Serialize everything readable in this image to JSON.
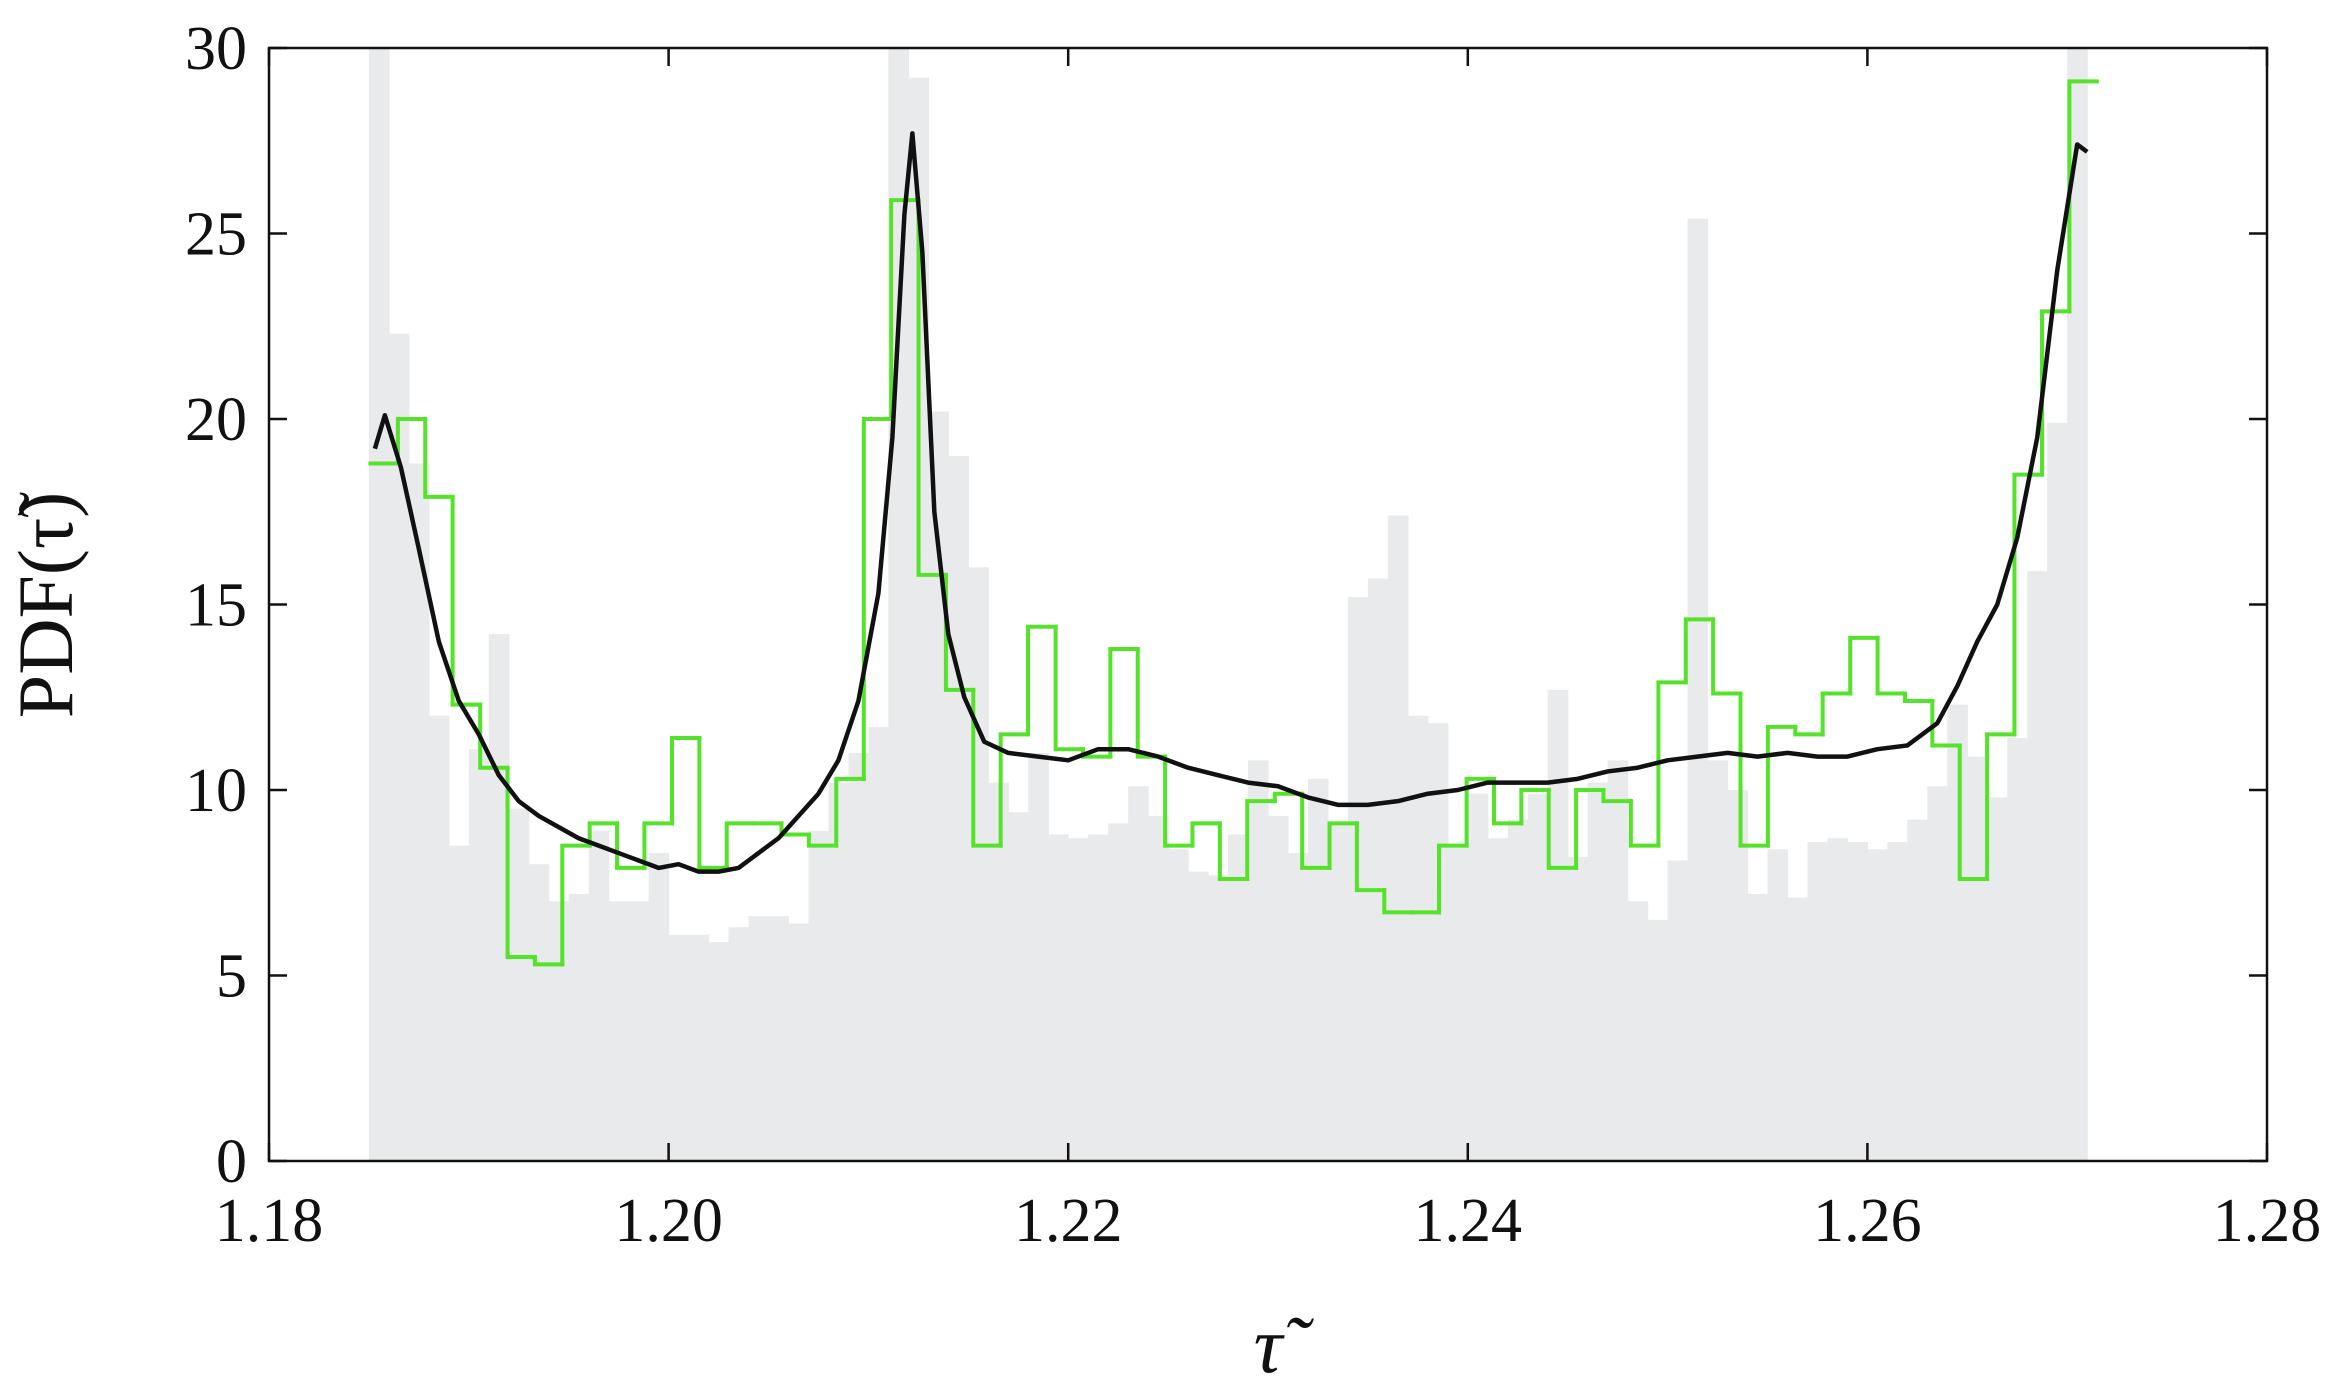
{
  "chart_data": {
    "type": "histogram",
    "xlabel": "τ̃",
    "ylabel": "PDF(τ̃)",
    "xlim": [
      1.18,
      1.28
    ],
    "xticks": [
      1.18,
      {
        "value": 1.2,
        "label": "1.20"
      },
      1.22,
      1.24,
      1.26,
      1.28
    ],
    "ylim": [
      0,
      30
    ],
    "yticks": [
      0,
      5,
      10,
      15,
      20,
      25,
      30
    ],
    "histograms": [
      {
        "style": "filled",
        "color": "#e8eaeb",
        "bins": [
          1.185,
          1.186,
          1.187,
          1.188,
          1.189,
          1.19,
          1.191,
          1.192,
          1.193,
          1.194,
          1.195,
          1.196,
          1.197,
          1.198,
          1.199,
          1.2,
          1.201,
          1.202,
          1.203,
          1.204,
          1.205,
          1.206,
          1.207,
          1.208,
          1.209,
          1.21,
          1.211,
          1.212,
          1.213,
          1.214,
          1.215,
          1.216,
          1.217,
          1.218,
          1.219,
          1.22,
          1.221,
          1.222,
          1.223,
          1.224,
          1.225,
          1.226,
          1.227,
          1.228,
          1.229,
          1.23,
          1.231,
          1.232,
          1.233,
          1.234,
          1.235,
          1.236,
          1.237,
          1.238,
          1.239,
          1.24,
          1.241,
          1.242,
          1.243,
          1.244,
          1.245,
          1.246,
          1.247,
          1.248,
          1.249,
          1.25,
          1.251,
          1.252,
          1.253,
          1.254,
          1.255,
          1.256,
          1.257,
          1.258,
          1.259,
          1.26,
          1.261,
          1.262,
          1.263,
          1.264,
          1.265,
          1.266,
          1.267,
          1.268,
          1.269,
          1.27,
          1.271
        ],
        "counts": [
          30,
          22.3,
          18.8,
          12,
          8.5,
          11.1,
          14.2,
          9.5,
          8,
          7,
          7.2,
          8.9,
          7,
          7,
          8.3,
          6.1,
          6.1,
          5.9,
          6.3,
          6.6,
          6.6,
          6.4,
          8.9,
          10.2,
          11,
          11.7,
          30,
          29.2,
          20.2,
          19,
          16,
          10.2,
          9.4,
          11,
          8.8,
          8.7,
          8.8,
          9.1,
          10.1,
          9.3,
          8.4,
          7.8,
          7.7,
          8.8,
          10.8,
          9.3,
          8.3,
          10.3,
          9.1,
          15.2,
          15.7,
          17.4,
          12,
          11.8,
          8.5,
          9.9,
          8.7,
          9.2,
          9.9,
          12.7,
          8.2,
          10.2,
          10.8,
          7,
          6.5,
          8.1,
          25.4,
          10.8,
          10,
          7.2,
          8.4,
          7.1,
          8.6,
          8.7,
          8.6,
          8.4,
          8.6,
          9.2,
          10.1,
          12.3,
          10.9,
          9.8,
          11.4,
          15.9,
          19.9,
          30
        ]
      },
      {
        "style": "step",
        "color": "#55e22b",
        "bins": [
          1.18508,
          1.18645,
          1.18782,
          1.18919,
          1.19057,
          1.19194,
          1.19331,
          1.19468,
          1.19605,
          1.19742,
          1.19879,
          1.20017,
          1.20154,
          1.20291,
          1.20428,
          1.20565,
          1.20702,
          1.20839,
          1.20977,
          1.21114,
          1.21251,
          1.21388,
          1.21525,
          1.21662,
          1.21799,
          1.21937,
          1.22074,
          1.22211,
          1.22348,
          1.22485,
          1.22622,
          1.22759,
          1.22896,
          1.23034,
          1.23171,
          1.23308,
          1.23445,
          1.23582,
          1.23719,
          1.23856,
          1.23994,
          1.24131,
          1.24268,
          1.24405,
          1.24542,
          1.24679,
          1.24816,
          1.24954,
          1.25091,
          1.25228,
          1.25365,
          1.25502,
          1.25639,
          1.25776,
          1.25914,
          1.26051,
          1.26188,
          1.26325,
          1.26462,
          1.26599,
          1.26736,
          1.26874,
          1.27011,
          1.27148
        ],
        "counts": [
          18.8,
          20,
          17.9,
          12.3,
          10.6,
          5.5,
          5.3,
          8.5,
          9.1,
          7.9,
          9.1,
          11.4,
          7.9,
          9.1,
          9.1,
          8.8,
          8.5,
          10.3,
          20,
          25.9,
          15.8,
          12.7,
          8.5,
          11.5,
          14.4,
          11.1,
          10.9,
          13.8,
          10.9,
          8.5,
          9.1,
          7.6,
          9.7,
          9.9,
          7.9,
          9.1,
          7.3,
          6.7,
          6.7,
          8.5,
          10.3,
          9.1,
          10,
          7.9,
          10,
          9.7,
          8.5,
          12.9,
          14.6,
          12.6,
          8.5,
          11.7,
          11.5,
          12.6,
          14.1,
          12.6,
          12.4,
          11.2,
          7.6,
          11.5,
          18.5,
          22.9,
          29.1
        ]
      }
    ],
    "line": {
      "color": "#111111",
      "x": [
        1.1853,
        1.1858,
        1.1866,
        1.1875,
        1.1885,
        1.1895,
        1.1905,
        1.1915,
        1.1925,
        1.1935,
        1.1945,
        1.1955,
        1.1965,
        1.1975,
        1.1985,
        1.1995,
        1.2005,
        1.2015,
        1.2025,
        1.2035,
        1.2045,
        1.2055,
        1.2065,
        1.2075,
        1.2085,
        1.2095,
        1.2105,
        1.2112,
        1.2118,
        1.2122,
        1.2127,
        1.2133,
        1.214,
        1.2148,
        1.2158,
        1.217,
        1.2185,
        1.22,
        1.2215,
        1.223,
        1.2245,
        1.226,
        1.2275,
        1.229,
        1.2305,
        1.232,
        1.2335,
        1.235,
        1.2365,
        1.238,
        1.2395,
        1.241,
        1.2425,
        1.244,
        1.2455,
        1.247,
        1.2485,
        1.25,
        1.2515,
        1.253,
        1.2545,
        1.256,
        1.2575,
        1.259,
        1.2605,
        1.262,
        1.2635,
        1.2645,
        1.2655,
        1.2665,
        1.2675,
        1.2685,
        1.2695,
        1.2705,
        1.271
      ],
      "y": [
        19.2,
        20.1,
        18.7,
        16.5,
        14,
        12.4,
        11.5,
        10.4,
        9.7,
        9.3,
        9,
        8.7,
        8.5,
        8.3,
        8.1,
        7.9,
        8,
        7.8,
        7.8,
        7.9,
        8.3,
        8.7,
        9.3,
        9.9,
        10.8,
        12.4,
        15.3,
        19.5,
        25.5,
        27.7,
        24.5,
        17.5,
        14.2,
        12.5,
        11.3,
        11,
        10.9,
        10.8,
        11.1,
        11.1,
        10.9,
        10.6,
        10.4,
        10.2,
        10.1,
        9.8,
        9.6,
        9.6,
        9.7,
        9.9,
        10,
        10.2,
        10.2,
        10.2,
        10.3,
        10.5,
        10.6,
        10.8,
        10.9,
        11,
        10.9,
        11,
        10.9,
        10.9,
        11.1,
        11.2,
        11.8,
        12.8,
        14,
        15,
        16.8,
        19.5,
        24,
        27.4,
        27.2
      ]
    }
  }
}
